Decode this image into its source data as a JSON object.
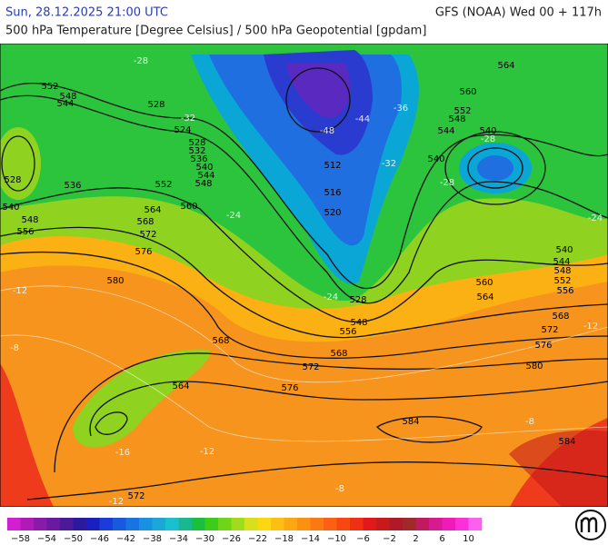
{
  "header": {
    "datetime": "Sun, 28.12.2025 21:00 UTC",
    "model": "GFS (NOAA) Wed 00 + 117h",
    "subtitle": "500 hPa Temperature [Degree Celsius] / 500 hPa Geopotential [gpdam]"
  },
  "contour_labels": [
    "552",
    "548",
    "544",
    "528",
    "536",
    "540",
    "548",
    "556",
    "528",
    "524",
    "528",
    "532",
    "536",
    "540",
    "544",
    "548",
    "552",
    "560",
    "564",
    "568",
    "572",
    "576",
    "580",
    "568",
    "564",
    "576",
    "572",
    "568",
    "556",
    "548",
    "528",
    "520",
    "516",
    "512",
    "564",
    "560",
    "552",
    "548",
    "544",
    "540",
    "540",
    "540",
    "544",
    "548",
    "552",
    "556",
    "560",
    "564",
    "568",
    "572",
    "576",
    "580",
    "584",
    "584",
    "572"
  ],
  "isotherm_labels": [
    "-28",
    "-32",
    "-36",
    "-44",
    "-48",
    "-32",
    "-28",
    "-24",
    "-24",
    "-12",
    "-8",
    "-16",
    "-12",
    "-12",
    "-8",
    "-8",
    "-12",
    "-24",
    "-28"
  ],
  "colorbar": {
    "labels": [
      "−58",
      "−54",
      "−50",
      "−46",
      "−42",
      "−38",
      "−34",
      "−30",
      "−26",
      "−22",
      "−18",
      "−14",
      "−10",
      "−6",
      "−2",
      "2",
      "6",
      "10"
    ]
  }
}
